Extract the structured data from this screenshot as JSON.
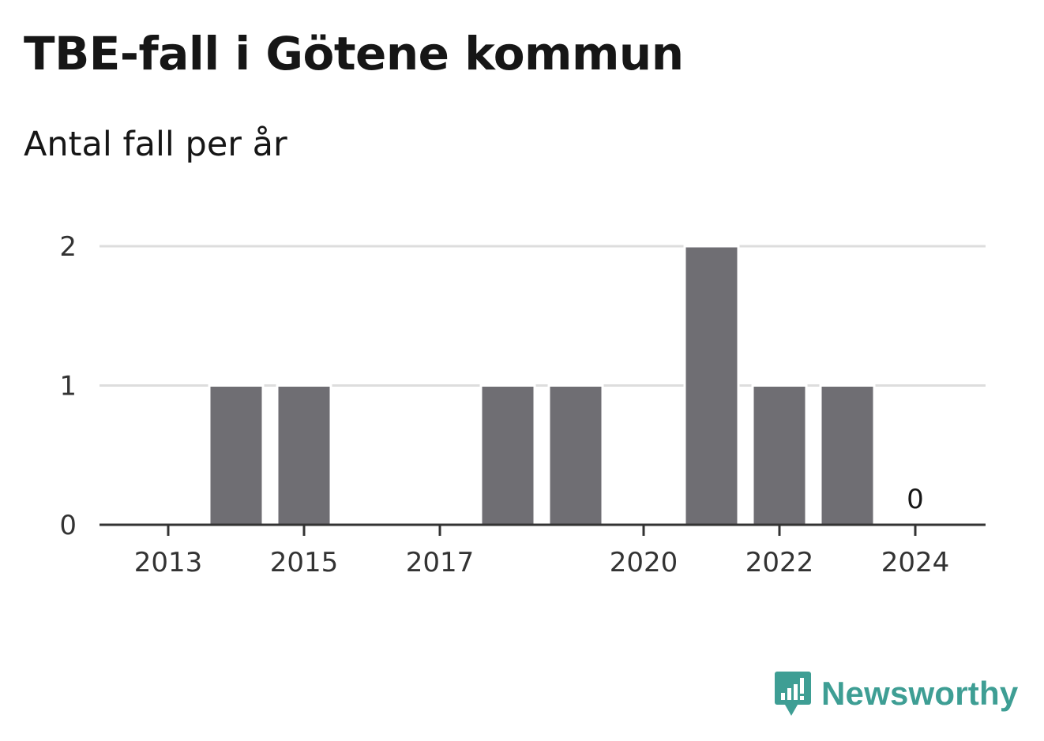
{
  "title": "TBE-fall i Götene kommun",
  "subtitle": "Antal fall per år",
  "brand": {
    "name": "Newsworthy",
    "icon": "newsworthy-logo-icon",
    "color": "#3e9e94"
  },
  "chart_data": {
    "type": "bar",
    "title": "TBE-fall i Götene kommun",
    "subtitle": "Antal fall per år",
    "categories": [
      "2013",
      "2014",
      "2015",
      "2016",
      "2017",
      "2018",
      "2019",
      "2020",
      "2021",
      "2022",
      "2023",
      "2024"
    ],
    "values": [
      0,
      1,
      1,
      0,
      0,
      1,
      1,
      0,
      2,
      1,
      1,
      0
    ],
    "x_tick_labels": [
      "2013",
      "2015",
      "2017",
      "2020",
      "2022",
      "2024"
    ],
    "y_ticks": [
      0,
      1,
      2
    ],
    "ylim": [
      0,
      2
    ],
    "grid": true,
    "data_labels": [
      {
        "category": "2024",
        "text": "0"
      }
    ],
    "bar_color": "#6f6e73",
    "grid_color": "#dddddd",
    "axis_color": "#333333",
    "xlabel": "",
    "ylabel": ""
  }
}
